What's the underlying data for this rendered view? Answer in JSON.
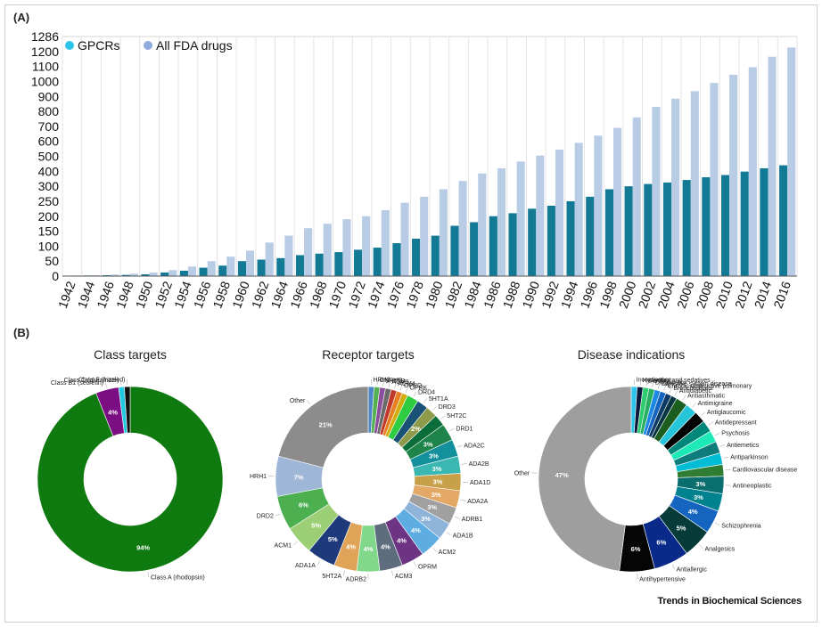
{
  "panels": {
    "a_label": "(A)",
    "b_label": "(B)"
  },
  "journal": "Trends in Biochemical Sciences",
  "colors": {
    "gpcr": "#137a96",
    "fda": "#b8cce6",
    "legend_gpcr": "#29c4e8",
    "legend_fda": "#8faadc"
  },
  "chart_data": [
    {
      "type": "bar",
      "panel": "(A)",
      "categories": [
        "1942",
        "1944",
        "1946",
        "1948",
        "1950",
        "1952",
        "1954",
        "1956",
        "1958",
        "1960",
        "1962",
        "1964",
        "1966",
        "1968",
        "1970",
        "1972",
        "1974",
        "1976",
        "1978",
        "1980",
        "1982",
        "1984",
        "1986",
        "1988",
        "1990",
        "1992",
        "1994",
        "1996",
        "1998",
        "2000",
        "2002",
        "2004",
        "2006",
        "2008",
        "2010",
        "2012",
        "2014",
        "2016"
      ],
      "series": [
        {
          "name": "GPCRs",
          "color": "#137a96",
          "values": [
            1,
            2,
            3,
            4,
            6,
            12,
            18,
            28,
            35,
            50,
            55,
            60,
            70,
            75,
            80,
            88,
            95,
            110,
            125,
            135,
            168,
            180,
            200,
            210,
            225,
            235,
            250,
            265,
            290,
            300,
            315,
            325,
            342,
            360,
            375,
            398,
            420,
            440
          ]
        },
        {
          "name": "All FDA drugs",
          "color": "#b8cce6",
          "values": [
            2,
            3,
            5,
            8,
            12,
            20,
            32,
            50,
            65,
            85,
            112,
            135,
            160,
            175,
            190,
            200,
            220,
            245,
            265,
            290,
            335,
            385,
            420,
            465,
            505,
            545,
            590,
            638,
            690,
            760,
            830,
            885,
            935,
            990,
            1045,
            1095,
            1165,
            1223
          ]
        }
      ],
      "yticks": [
        0,
        50,
        100,
        150,
        200,
        250,
        300,
        400,
        500,
        600,
        700,
        800,
        900,
        1000,
        1100,
        1200,
        1286
      ],
      "ylim": [
        0,
        1286
      ],
      "legend": "top-left"
    },
    {
      "type": "pie",
      "subtype": "donut",
      "title": "Class targets",
      "slices": [
        {
          "label": "Class A (rhodopsin)",
          "value": 94,
          "pct": "94%",
          "color": "#0f7a0f"
        },
        {
          "label": "Class B1 (secretin)",
          "value": 4,
          "pct": "4%",
          "color": "#7a0e82"
        },
        {
          "label": "Class C (glutamate)",
          "value": 1,
          "pct": "",
          "color": "#1fc9e0"
        },
        {
          "label": "Class F (frizzled)",
          "value": 1,
          "pct": "",
          "color": "#111111"
        }
      ]
    },
    {
      "type": "pie",
      "subtype": "donut",
      "title": "Receptor targets",
      "slices": [
        {
          "label": "HRH2",
          "value": 1,
          "pct": "",
          "color": "#4c86c8"
        },
        {
          "label": "GNRHR",
          "value": 1,
          "pct": "",
          "color": "#55b050"
        },
        {
          "label": "5HT1B",
          "value": 1,
          "pct": "",
          "color": "#8a4e9c"
        },
        {
          "label": "ACM5",
          "value": 1,
          "pct": "",
          "color": "#6b6b6b"
        },
        {
          "label": "ACM4",
          "value": 1,
          "pct": "",
          "color": "#c0392b"
        },
        {
          "label": "OPRD",
          "value": 1,
          "pct": "",
          "color": "#e67e22"
        },
        {
          "label": "OPRK",
          "value": 1,
          "pct": "",
          "color": "#d4ac0d"
        },
        {
          "label": "DRD4",
          "value": 2,
          "pct": "",
          "color": "#2ecc40"
        },
        {
          "label": "5HT1A",
          "value": 2,
          "pct": "",
          "color": "#1a5276"
        },
        {
          "label": "DRD3",
          "value": 2,
          "pct": "2%",
          "color": "#8d9a4a"
        },
        {
          "label": "5HT2C",
          "value": 2,
          "pct": "",
          "color": "#0b6e3a"
        },
        {
          "label": "DRD1",
          "value": 3,
          "pct": "3%",
          "color": "#1e8449"
        },
        {
          "label": "ADA2C",
          "value": 3,
          "pct": "3%",
          "color": "#148f9c"
        },
        {
          "label": "ADA2B",
          "value": 3,
          "pct": "3%",
          "color": "#3ab7b0"
        },
        {
          "label": "ADA1D",
          "value": 3,
          "pct": "3%",
          "color": "#c8a04a"
        },
        {
          "label": "ADA2A",
          "value": 3,
          "pct": "3%",
          "color": "#e3a865"
        },
        {
          "label": "ADRB1",
          "value": 3,
          "pct": "3%",
          "color": "#a0a0a0"
        },
        {
          "label": "ADA1B",
          "value": 3,
          "pct": "3%",
          "color": "#8fb4d9"
        },
        {
          "label": "ACM2",
          "value": 4,
          "pct": "4%",
          "color": "#5dade2"
        },
        {
          "label": "OPRM",
          "value": 4,
          "pct": "4%",
          "color": "#6c3483"
        },
        {
          "label": "ACM3",
          "value": 4,
          "pct": "4%",
          "color": "#5d6d7e"
        },
        {
          "label": "ADRB2",
          "value": 4,
          "pct": "4%",
          "color": "#82d88a"
        },
        {
          "label": "5HT2A",
          "value": 4,
          "pct": "4%",
          "color": "#e0a458"
        },
        {
          "label": "ADA1A",
          "value": 5,
          "pct": "5%",
          "color": "#1f3a7a"
        },
        {
          "label": "ACM1",
          "value": 5,
          "pct": "5%",
          "color": "#9ccf75"
        },
        {
          "label": "DRD2",
          "value": 6,
          "pct": "6%",
          "color": "#4caf50"
        },
        {
          "label": "HRH1",
          "value": 7,
          "pct": "7%",
          "color": "#9fb7d6"
        },
        {
          "label": "Other",
          "value": 21,
          "pct": "21%",
          "color": "#8c8c8c"
        }
      ]
    },
    {
      "type": "pie",
      "subtype": "donut",
      "title": "Disease indications",
      "slices": [
        {
          "label": "Incontinence",
          "value": 1,
          "pct": "",
          "color": "#29c4e8"
        },
        {
          "label": "Hypnotics and sedatives",
          "value": 1,
          "pct": "",
          "color": "#0b1a3a"
        },
        {
          "label": "Fertility",
          "value": 1,
          "pct": "",
          "color": "#2ecc71"
        },
        {
          "label": "Diagnostic",
          "value": 1,
          "pct": "",
          "color": "#27ae60"
        },
        {
          "label": "Digestive system disease",
          "value": 1,
          "pct": "",
          "color": "#1e88e5"
        },
        {
          "label": "Chronic obstructive pulmonary",
          "value": 1,
          "pct": "",
          "color": "#1565c0"
        },
        {
          "label": "Bronchodilator",
          "value": 1,
          "pct": "",
          "color": "#0d3b66"
        },
        {
          "label": "Antidiabetic",
          "value": 1,
          "pct": "",
          "color": "#073642"
        },
        {
          "label": "Antiasthmatic",
          "value": 2,
          "pct": "",
          "color": "#1b5e20"
        },
        {
          "label": "Antimigraine",
          "value": 2,
          "pct": "",
          "color": "#26c6da"
        },
        {
          "label": "Antiglaucomic",
          "value": 2,
          "pct": "",
          "color": "#000000"
        },
        {
          "label": "Antidepressant",
          "value": 2,
          "pct": "",
          "color": "#00897b"
        },
        {
          "label": "Psychosis",
          "value": 2,
          "pct": "",
          "color": "#1de9b6"
        },
        {
          "label": "Antiemetics",
          "value": 2,
          "pct": "",
          "color": "#0e7c7b"
        },
        {
          "label": "Antiparkinson",
          "value": 2,
          "pct": "",
          "color": "#00bcd4"
        },
        {
          "label": "Cardiovascular disease",
          "value": 2,
          "pct": "",
          "color": "#2e7d32"
        },
        {
          "label": "Antineoplastic",
          "value": 3,
          "pct": "3%",
          "color": "#0b6e6e"
        },
        {
          "label": "",
          "value": 3,
          "pct": "3%",
          "color": "#00838f"
        },
        {
          "label": "Schizophrenia",
          "value": 4,
          "pct": "4%",
          "color": "#1565c0"
        },
        {
          "label": "Analgesics",
          "value": 5,
          "pct": "5%",
          "color": "#073b3a"
        },
        {
          "label": "Antiallergic",
          "value": 6,
          "pct": "6%",
          "color": "#0a2a8a"
        },
        {
          "label": "Antihypertensive",
          "value": 6,
          "pct": "6%",
          "color": "#050505"
        },
        {
          "label": "Other",
          "value": 47,
          "pct": "47%",
          "color": "#9e9e9e"
        }
      ]
    }
  ]
}
